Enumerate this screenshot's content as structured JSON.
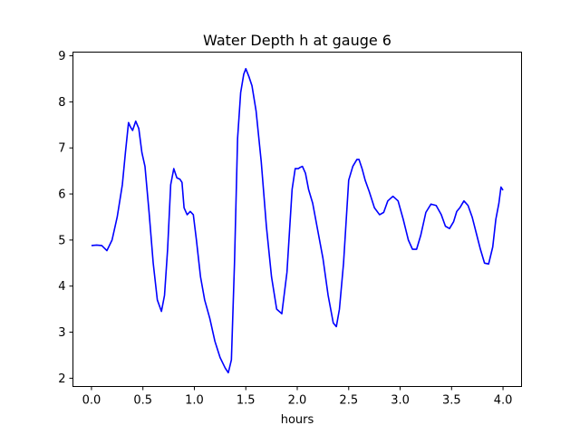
{
  "chart_data": {
    "type": "line",
    "title": "Water Depth h at gauge 6",
    "xlabel": "hours",
    "ylabel": "",
    "xlim": [
      -0.18,
      4.18
    ],
    "ylim": [
      1.82,
      9.08
    ],
    "xticks": [
      0.0,
      0.5,
      1.0,
      1.5,
      2.0,
      2.5,
      3.0,
      3.5,
      4.0
    ],
    "xtick_labels": [
      "0.0",
      "0.5",
      "1.0",
      "1.5",
      "2.0",
      "2.5",
      "3.0",
      "3.5",
      "4.0"
    ],
    "yticks": [
      2,
      3,
      4,
      5,
      6,
      7,
      8,
      9
    ],
    "ytick_labels": [
      "2",
      "3",
      "4",
      "5",
      "6",
      "7",
      "8",
      "9"
    ],
    "grid": false,
    "series": [
      {
        "color": "#0000ff",
        "x": [
          0.0,
          0.05,
          0.1,
          0.15,
          0.2,
          0.25,
          0.3,
          0.33,
          0.36,
          0.38,
          0.4,
          0.43,
          0.46,
          0.49,
          0.52,
          0.56,
          0.6,
          0.64,
          0.68,
          0.71,
          0.74,
          0.77,
          0.8,
          0.83,
          0.86,
          0.88,
          0.9,
          0.93,
          0.96,
          0.99,
          1.02,
          1.06,
          1.1,
          1.15,
          1.2,
          1.25,
          1.3,
          1.33,
          1.36,
          1.39,
          1.42,
          1.45,
          1.48,
          1.5,
          1.53,
          1.56,
          1.6,
          1.65,
          1.7,
          1.75,
          1.8,
          1.85,
          1.9,
          1.95,
          1.98,
          2.01,
          2.03,
          2.05,
          2.08,
          2.11,
          2.15,
          2.2,
          2.25,
          2.3,
          2.35,
          2.38,
          2.41,
          2.45,
          2.5,
          2.54,
          2.58,
          2.6,
          2.63,
          2.66,
          2.7,
          2.75,
          2.8,
          2.84,
          2.88,
          2.93,
          2.98,
          3.03,
          3.08,
          3.12,
          3.16,
          3.2,
          3.25,
          3.3,
          3.35,
          3.4,
          3.44,
          3.48,
          3.52,
          3.55,
          3.58,
          3.62,
          3.66,
          3.7,
          3.74,
          3.78,
          3.82,
          3.86,
          3.9,
          3.93,
          3.96,
          3.98,
          4.0
        ],
        "y": [
          4.88,
          4.89,
          4.88,
          4.77,
          5.0,
          5.5,
          6.2,
          6.9,
          7.55,
          7.45,
          7.38,
          7.58,
          7.42,
          6.9,
          6.6,
          5.6,
          4.5,
          3.7,
          3.45,
          3.8,
          4.8,
          6.2,
          6.55,
          6.35,
          6.32,
          6.25,
          5.7,
          5.55,
          5.62,
          5.55,
          5.0,
          4.2,
          3.7,
          3.3,
          2.8,
          2.45,
          2.22,
          2.12,
          2.4,
          4.5,
          7.2,
          8.2,
          8.6,
          8.72,
          8.55,
          8.35,
          7.8,
          6.7,
          5.3,
          4.2,
          3.5,
          3.4,
          4.3,
          6.1,
          6.55,
          6.55,
          6.58,
          6.6,
          6.45,
          6.1,
          5.8,
          5.2,
          4.6,
          3.8,
          3.2,
          3.12,
          3.5,
          4.5,
          6.3,
          6.6,
          6.75,
          6.75,
          6.55,
          6.3,
          6.05,
          5.7,
          5.55,
          5.6,
          5.85,
          5.95,
          5.85,
          5.45,
          5.0,
          4.8,
          4.8,
          5.1,
          5.6,
          5.78,
          5.75,
          5.55,
          5.3,
          5.25,
          5.4,
          5.62,
          5.7,
          5.85,
          5.75,
          5.5,
          5.15,
          4.8,
          4.5,
          4.48,
          4.85,
          5.45,
          5.8,
          6.15,
          6.08
        ]
      }
    ]
  }
}
